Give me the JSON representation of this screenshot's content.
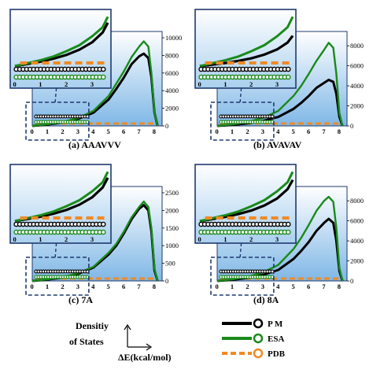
{
  "colors": {
    "pm": "#000000",
    "esa": "#1a8a1a",
    "pdb": "#f08a24",
    "bg_top": "#ffffff",
    "bg_bottom": "#7fb7e6",
    "inset_border": "#1f3a6e",
    "dash_box": "#1f3a6e"
  },
  "legend": {
    "y_label_line1": "Densitiy",
    "y_label_line2": "of States",
    "x_label": "ΔE(kcal/mol)",
    "items": [
      {
        "name": "P M",
        "color": "#000000"
      },
      {
        "name": "ESA",
        "color": "#1a8a1a"
      },
      {
        "name": "PDB",
        "color": "#f08a24"
      }
    ]
  },
  "chart_data": [
    {
      "type": "line",
      "caption": "(a) AAAVVV",
      "x_ticks": [
        "0",
        "1",
        "2",
        "3",
        "4",
        "5",
        "6",
        "7",
        "8"
      ],
      "inset_x_ticks": [
        "0",
        "1",
        "2",
        "3"
      ],
      "y_ticks": [
        "0",
        "2000",
        "4000",
        "6000",
        "8000",
        "10000"
      ],
      "ylim": [
        0,
        10000
      ],
      "xlim": [
        0,
        8.5
      ],
      "series": [
        {
          "name": "P M",
          "x": [
            0,
            1,
            2,
            3,
            4,
            5,
            5.5,
            6,
            6.5,
            7,
            7.3,
            7.6,
            7.8,
            8,
            8.2
          ],
          "values": [
            0,
            150,
            400,
            800,
            1500,
            3000,
            4200,
            5500,
            7000,
            7900,
            8200,
            7700,
            5500,
            1500,
            0
          ]
        },
        {
          "name": "ESA",
          "x": [
            0,
            1,
            2,
            3,
            4,
            5,
            5.5,
            6,
            6.5,
            7,
            7.3,
            7.6,
            7.8,
            8,
            8.2
          ],
          "values": [
            0,
            180,
            450,
            900,
            1700,
            3400,
            4800,
            6200,
            7800,
            9000,
            9600,
            9000,
            6000,
            1500,
            0
          ]
        }
      ]
    },
    {
      "type": "line",
      "caption": "(b) AVAVAV",
      "x_ticks": [
        "0",
        "1",
        "2",
        "3",
        "4",
        "5",
        "6",
        "7",
        "8"
      ],
      "inset_x_ticks": [
        "0",
        "1",
        "2",
        "3"
      ],
      "y_ticks": [
        "0",
        "2000",
        "4000",
        "6000",
        "8000"
      ],
      "ylim": [
        0,
        8800
      ],
      "xlim": [
        0,
        8.5
      ],
      "series": [
        {
          "name": "P M",
          "x": [
            0,
            1,
            2,
            3,
            4,
            5,
            5.5,
            6,
            6.5,
            7,
            7.3,
            7.6,
            7.8,
            8,
            8.2
          ],
          "values": [
            0,
            100,
            250,
            500,
            900,
            1700,
            2300,
            3000,
            3800,
            4300,
            4600,
            4400,
            3200,
            900,
            0
          ]
        },
        {
          "name": "ESA",
          "x": [
            0,
            1,
            2,
            3,
            4,
            5,
            5.5,
            6,
            6.5,
            7,
            7.3,
            7.6,
            7.8,
            8,
            8.2
          ],
          "values": [
            0,
            150,
            400,
            800,
            1500,
            3000,
            4000,
            5200,
            6500,
            7600,
            8300,
            7800,
            5200,
            1300,
            0
          ]
        }
      ]
    },
    {
      "type": "line",
      "caption": "(c) 7A",
      "x_ticks": [
        "0",
        "1",
        "2",
        "3",
        "4",
        "5",
        "6",
        "7",
        "8"
      ],
      "inset_x_ticks": [
        "0",
        "1",
        "2",
        "3"
      ],
      "y_ticks": [
        "0",
        "500",
        "1000",
        "1500",
        "2000",
        "2500"
      ],
      "ylim": [
        0,
        2500
      ],
      "xlim": [
        0,
        8.5
      ],
      "series": [
        {
          "name": "P M",
          "x": [
            0,
            1,
            2,
            3,
            4,
            5,
            5.5,
            6,
            6.5,
            7,
            7.3,
            7.6,
            7.8,
            8,
            8.2
          ],
          "values": [
            0,
            40,
            100,
            200,
            380,
            750,
            1000,
            1350,
            1750,
            2050,
            2150,
            2000,
            1400,
            300,
            0
          ]
        },
        {
          "name": "ESA",
          "x": [
            0,
            1,
            2,
            3,
            4,
            5,
            5.5,
            6,
            6.5,
            7,
            7.3,
            7.6,
            7.8,
            8,
            8.2
          ],
          "values": [
            0,
            45,
            110,
            220,
            400,
            800,
            1050,
            1400,
            1800,
            2100,
            2250,
            2100,
            1500,
            350,
            0
          ]
        }
      ]
    },
    {
      "type": "line",
      "caption": "(d) 8A",
      "x_ticks": [
        "0",
        "1",
        "2",
        "3",
        "4",
        "5",
        "6",
        "7",
        "8"
      ],
      "inset_x_ticks": [
        "0",
        "1",
        "2",
        "3"
      ],
      "y_ticks": [
        "0",
        "2000",
        "4000",
        "6000",
        "8000"
      ],
      "ylim": [
        0,
        8800
      ],
      "xlim": [
        0,
        8.5
      ],
      "series": [
        {
          "name": "P M",
          "x": [
            0,
            1,
            2,
            3,
            4,
            5,
            5.5,
            6,
            6.5,
            7,
            7.3,
            7.6,
            7.8,
            8,
            8.2
          ],
          "values": [
            0,
            120,
            300,
            600,
            1100,
            2200,
            3000,
            3900,
            5000,
            5800,
            6200,
            5800,
            4000,
            1000,
            0
          ]
        },
        {
          "name": "ESA",
          "x": [
            0,
            1,
            2,
            3,
            4,
            5,
            5.5,
            6,
            6.5,
            7,
            7.3,
            7.6,
            7.8,
            8,
            8.2
          ],
          "values": [
            0,
            160,
            420,
            850,
            1600,
            3200,
            4300,
            5600,
            7000,
            8000,
            8400,
            7900,
            5300,
            1300,
            0
          ]
        }
      ]
    }
  ]
}
